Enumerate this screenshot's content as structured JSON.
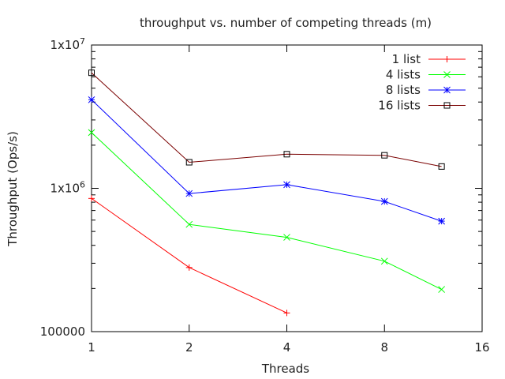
{
  "chart_data": {
    "type": "line",
    "title": "throughput vs. number of competing threads (m)",
    "xlabel": "Threads",
    "ylabel": "Throughput (Ops/s)",
    "x_scale": "log2",
    "y_scale": "log10",
    "xlim": [
      1,
      16
    ],
    "ylim": [
      100000,
      10000000
    ],
    "x_ticks": [
      1,
      2,
      4,
      8,
      16
    ],
    "x_tick_labels": [
      "1",
      "2",
      "4",
      "8",
      "16"
    ],
    "y_ticks": [
      100000,
      1000000,
      10000000
    ],
    "y_tick_labels": [
      {
        "base": "100000",
        "exp": ""
      },
      {
        "base": "1x10",
        "exp": "6"
      },
      {
        "base": "1x10",
        "exp": "7"
      }
    ],
    "legend_position": "top-right",
    "series": [
      {
        "name": "1 list",
        "color": "#ff0000",
        "marker": "plus",
        "x": [
          1,
          2,
          4
        ],
        "y": [
          850000,
          280000,
          135000
        ]
      },
      {
        "name": "4 lists",
        "color": "#00ff00",
        "marker": "cross",
        "x": [
          1,
          2,
          4,
          8,
          12
        ],
        "y": [
          2450000,
          560000,
          455000,
          310000,
          197000
        ]
      },
      {
        "name": "8 lists",
        "color": "#0000ff",
        "marker": "star",
        "x": [
          1,
          2,
          4,
          8,
          12
        ],
        "y": [
          4150000,
          920000,
          1060000,
          810000,
          590000
        ]
      },
      {
        "name": "16 lists",
        "color": "#000000",
        "line_color": "#7a0000",
        "marker": "square",
        "x": [
          1,
          2,
          4,
          8,
          12
        ],
        "y": [
          6400000,
          1520000,
          1730000,
          1700000,
          1420000
        ]
      }
    ]
  }
}
